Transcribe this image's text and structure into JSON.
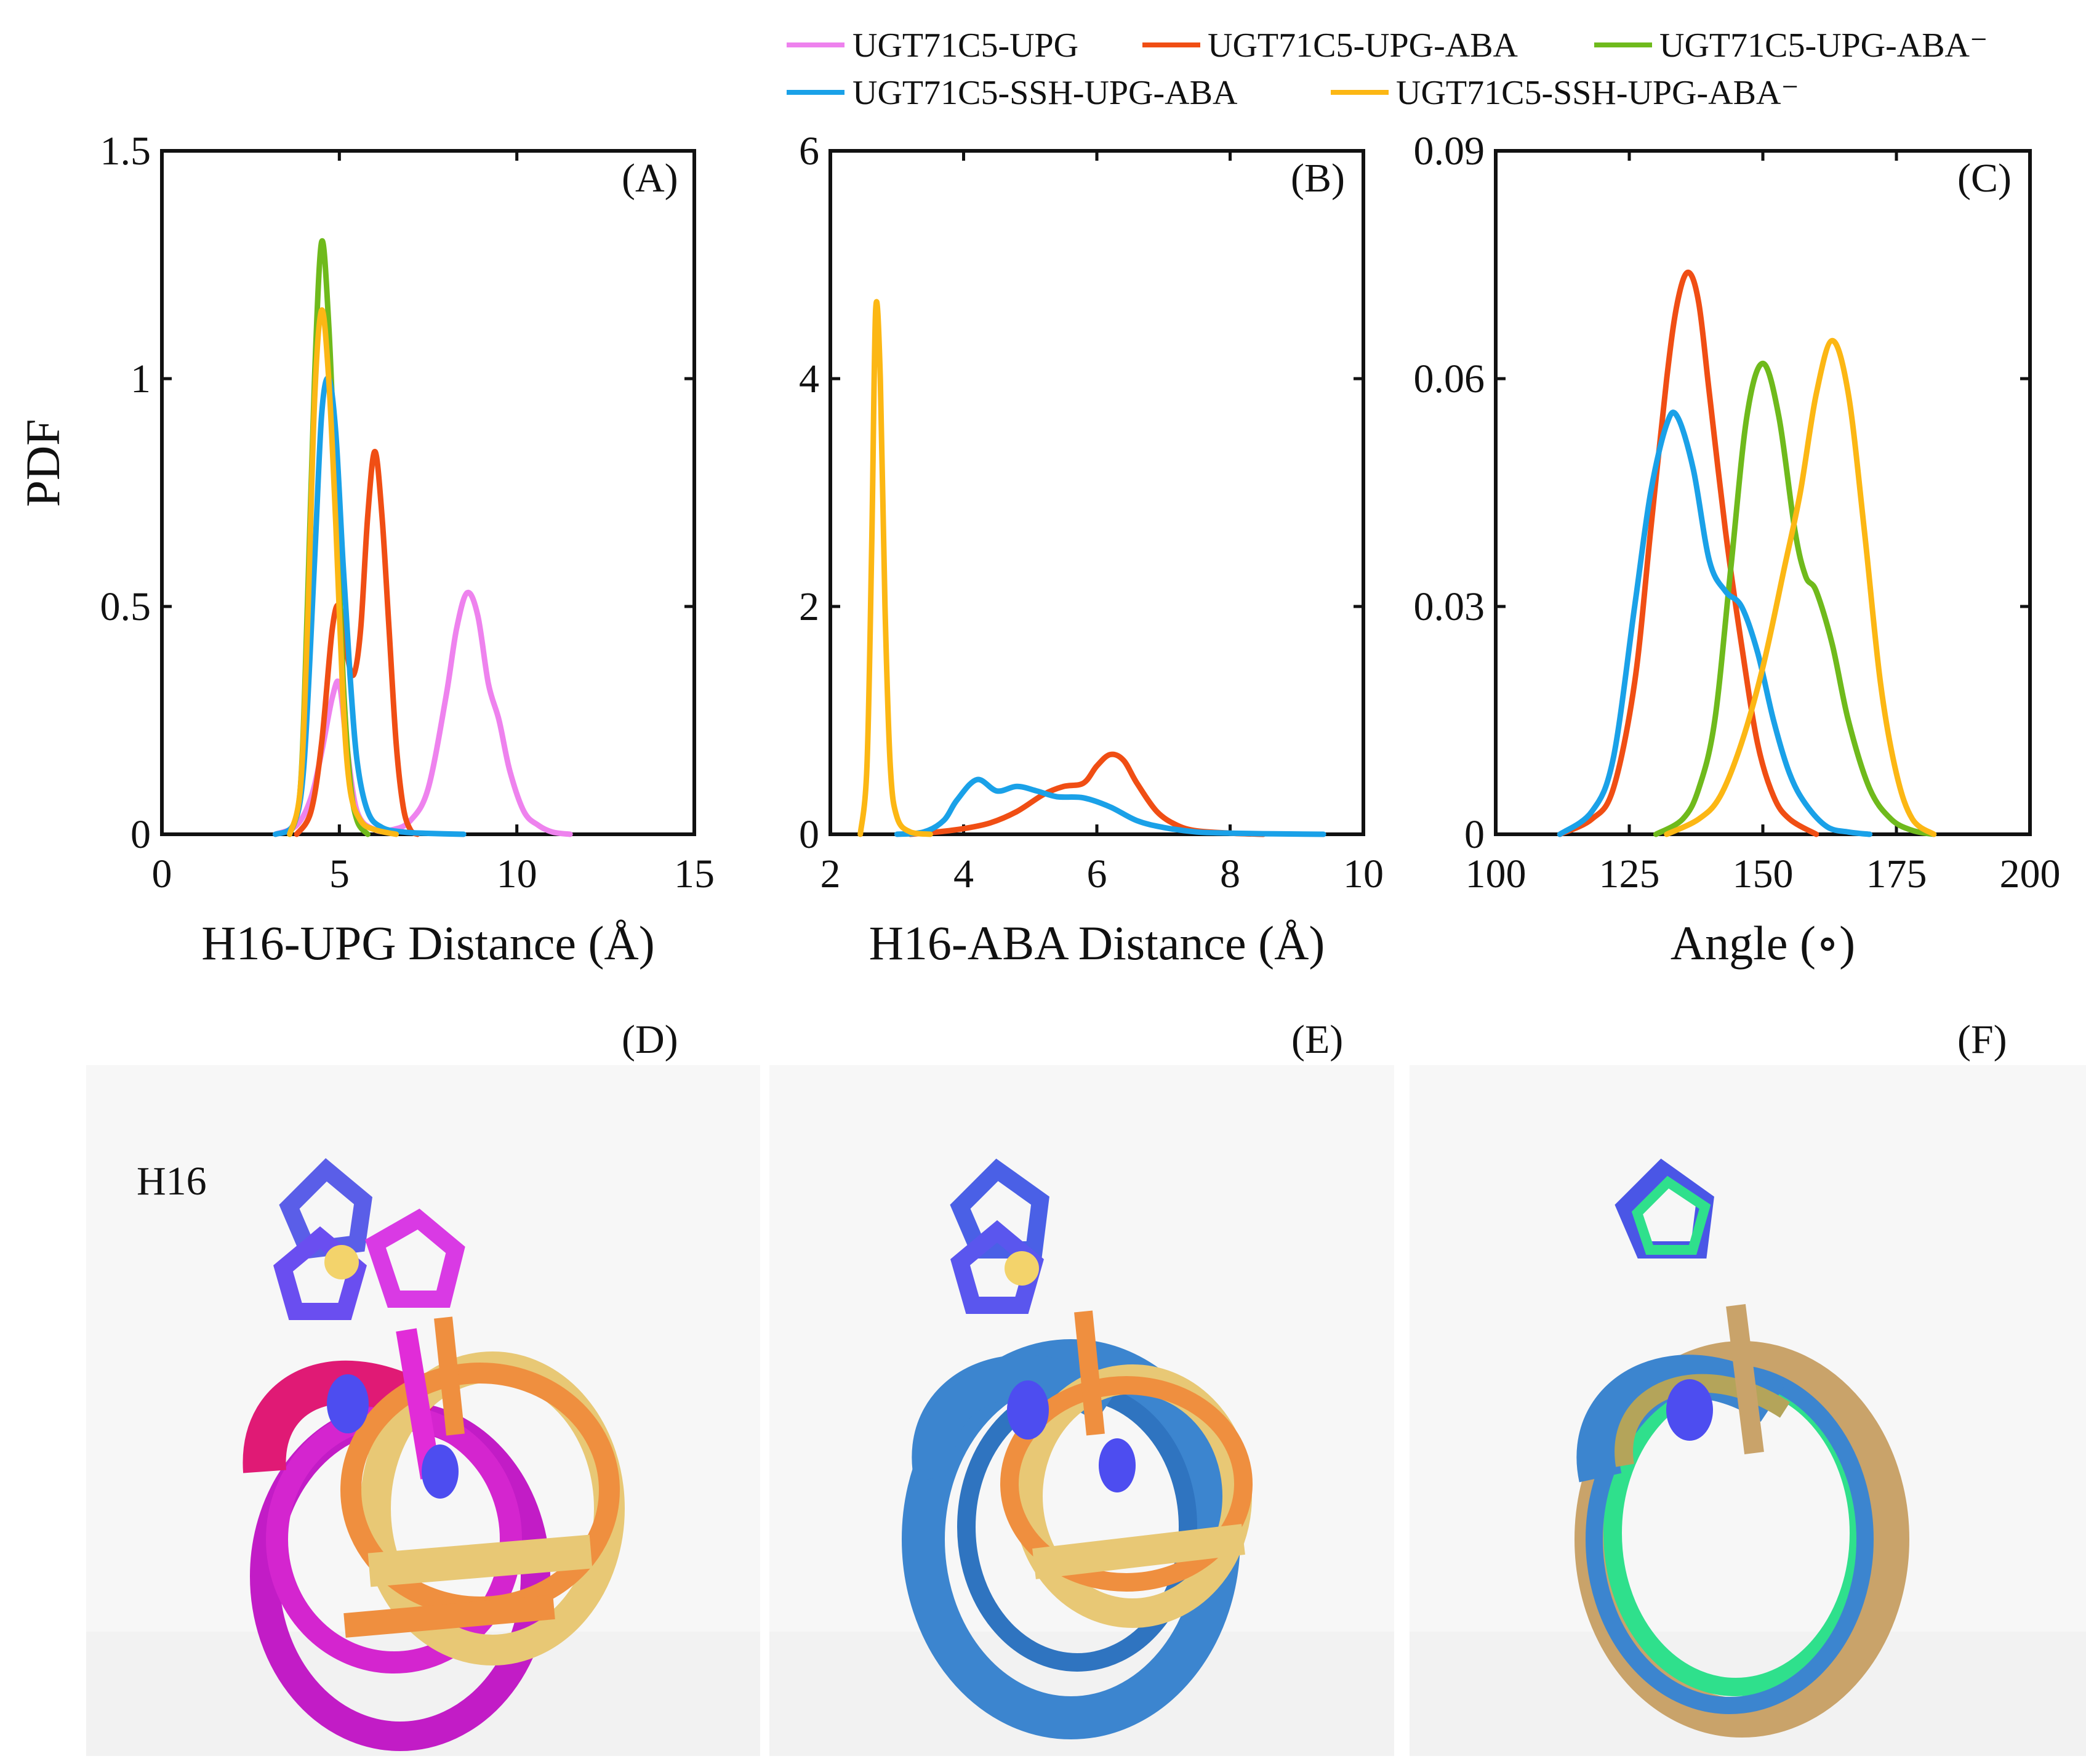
{
  "legend": [
    {
      "name": "UGT71C5-UPG",
      "color": "#ee82ee"
    },
    {
      "name": "UGT71C5-UPG-ABA",
      "color": "#f04e14"
    },
    {
      "name": "UGT71C5-UPG-ABA⁻",
      "color": "#6fba1c"
    },
    {
      "name": "UGT71C5-SSH-UPG-ABA",
      "color": "#1aa1e8"
    },
    {
      "name": "UGT71C5-SSH-UPG-ABA⁻",
      "color": "#fcb714"
    }
  ],
  "ylabel": "PDF",
  "structure_label": "H16",
  "panel_labels": [
    "(A)",
    "(B)",
    "(C)",
    "(D)",
    "(E)",
    "(F)"
  ],
  "chart_data": [
    {
      "type": "line",
      "panel": "(A)",
      "xlabel": "H16-UPG Distance (Å)",
      "ylabel": "PDF",
      "xlim": [
        0,
        15
      ],
      "ylim": [
        0,
        1.5
      ],
      "xticks": [
        0,
        5,
        10,
        15
      ],
      "xtick_labels": [
        "0",
        "5",
        "10",
        "15"
      ],
      "yticks": [
        0,
        0.5,
        1,
        1.5
      ],
      "ytick_labels": [
        "0",
        "0.5",
        "1",
        "1.5"
      ],
      "series": [
        {
          "name": "UGT71C5-UPG",
          "color": "#ee82ee",
          "x": [
            3.2,
            3.8,
            4.2,
            4.5,
            4.8,
            5.0,
            5.2,
            5.5,
            6.0,
            6.5,
            7.0,
            7.5,
            8.0,
            8.3,
            8.6,
            8.9,
            9.2,
            9.5,
            9.8,
            10.2,
            10.6,
            11.0,
            11.5
          ],
          "y": [
            0,
            0.02,
            0.08,
            0.18,
            0.3,
            0.33,
            0.2,
            0.05,
            0.01,
            0.01,
            0.03,
            0.1,
            0.3,
            0.45,
            0.53,
            0.48,
            0.33,
            0.25,
            0.14,
            0.05,
            0.02,
            0.005,
            0
          ]
        },
        {
          "name": "UGT71C5-UPG-ABA",
          "color": "#f04e14",
          "x": [
            3.8,
            4.2,
            4.5,
            4.8,
            5.0,
            5.2,
            5.4,
            5.6,
            5.8,
            6.0,
            6.2,
            6.4,
            6.6,
            6.8,
            7.0,
            7.2
          ],
          "y": [
            0,
            0.05,
            0.2,
            0.45,
            0.5,
            0.4,
            0.35,
            0.45,
            0.7,
            0.84,
            0.7,
            0.45,
            0.2,
            0.06,
            0.01,
            0
          ]
        },
        {
          "name": "UGT71C5-UPG-ABA⁻",
          "color": "#6fba1c",
          "x": [
            3.6,
            3.9,
            4.1,
            4.3,
            4.5,
            4.7,
            4.9,
            5.1,
            5.3,
            5.5,
            5.8
          ],
          "y": [
            0,
            0.1,
            0.5,
            1.0,
            1.3,
            1.12,
            0.75,
            0.35,
            0.12,
            0.03,
            0
          ]
        },
        {
          "name": "UGT71C5-SSH-UPG-ABA",
          "color": "#1aa1e8",
          "x": [
            3.2,
            3.7,
            4.0,
            4.3,
            4.5,
            4.7,
            4.9,
            5.1,
            5.3,
            5.5,
            5.8,
            6.2,
            6.8,
            7.5,
            8.5
          ],
          "y": [
            0,
            0.02,
            0.15,
            0.6,
            0.92,
            1.0,
            0.88,
            0.6,
            0.35,
            0.16,
            0.05,
            0.015,
            0.005,
            0.002,
            0
          ]
        },
        {
          "name": "UGT71C5-SSH-UPG-ABA⁻",
          "color": "#fcb714",
          "x": [
            3.6,
            3.9,
            4.1,
            4.3,
            4.5,
            4.7,
            4.9,
            5.1,
            5.3,
            5.6,
            6.0,
            6.6
          ],
          "y": [
            0,
            0.1,
            0.45,
            0.95,
            1.15,
            1.0,
            0.68,
            0.3,
            0.1,
            0.03,
            0.01,
            0
          ]
        }
      ]
    },
    {
      "type": "line",
      "panel": "(B)",
      "xlabel": "H16-ABA Distance (Å)",
      "xlim": [
        2,
        10
      ],
      "ylim": [
        0,
        6
      ],
      "xticks": [
        2,
        4,
        6,
        8,
        10
      ],
      "xtick_labels": [
        "2",
        "4",
        "6",
        "8",
        "10"
      ],
      "yticks": [
        0,
        2,
        4,
        6
      ],
      "ytick_labels": [
        "0",
        "2",
        "4",
        "6"
      ],
      "series": [
        {
          "name": "UGT71C5-UPG-ABA",
          "color": "#f04e14",
          "x": [
            3.2,
            3.6,
            4.0,
            4.4,
            4.8,
            5.2,
            5.5,
            5.8,
            6.0,
            6.2,
            6.4,
            6.6,
            6.9,
            7.2,
            7.5,
            8.0,
            8.5
          ],
          "y": [
            0,
            0.02,
            0.05,
            0.1,
            0.2,
            0.35,
            0.42,
            0.45,
            0.6,
            0.7,
            0.65,
            0.45,
            0.2,
            0.08,
            0.03,
            0.01,
            0
          ]
        },
        {
          "name": "UGT71C5-SSH-UPG-ABA",
          "color": "#1aa1e8",
          "x": [
            3.0,
            3.4,
            3.7,
            3.9,
            4.2,
            4.5,
            4.8,
            5.1,
            5.4,
            5.8,
            6.2,
            6.6,
            7.0,
            7.5,
            8.0,
            8.5,
            9.0,
            9.4
          ],
          "y": [
            0,
            0.02,
            0.12,
            0.3,
            0.48,
            0.38,
            0.42,
            0.38,
            0.33,
            0.32,
            0.24,
            0.12,
            0.06,
            0.02,
            0.01,
            0.005,
            0.002,
            0
          ]
        },
        {
          "name": "UGT71C5-SSH-UPG-ABA⁻",
          "color": "#fcb714",
          "x": [
            2.45,
            2.55,
            2.62,
            2.68,
            2.75,
            2.82,
            2.9,
            3.0,
            3.2,
            3.5
          ],
          "y": [
            0,
            0.6,
            2.5,
            4.6,
            4.0,
            2.0,
            0.6,
            0.15,
            0.02,
            0
          ]
        }
      ]
    },
    {
      "type": "line",
      "panel": "(C)",
      "xlabel": "Angle (∘)",
      "xlim": [
        100,
        200
      ],
      "ylim": [
        0,
        0.09
      ],
      "xticks": [
        100,
        125,
        150,
        175,
        200
      ],
      "xtick_labels": [
        "100",
        "125",
        "150",
        "175",
        "200"
      ],
      "yticks": [
        0,
        0.03,
        0.06,
        0.09
      ],
      "ytick_labels": [
        "0",
        "0.03",
        "0.06",
        "0.09"
      ],
      "series": [
        {
          "name": "UGT71C5-UPG-ABA",
          "color": "#f04e14",
          "x": [
            112,
            118,
            122,
            126,
            129,
            132,
            134,
            136,
            138,
            140,
            143,
            146,
            149,
            152,
            155,
            160
          ],
          "y": [
            0,
            0.002,
            0.006,
            0.02,
            0.04,
            0.06,
            0.07,
            0.074,
            0.07,
            0.058,
            0.04,
            0.025,
            0.012,
            0.005,
            0.002,
            0
          ]
        },
        {
          "name": "UGT71C5-UPG-ABA⁻",
          "color": "#6fba1c",
          "x": [
            130,
            135,
            138,
            141,
            144,
            147,
            150,
            153,
            156,
            158,
            160,
            163,
            166,
            170,
            174,
            178,
            182
          ],
          "y": [
            0,
            0.002,
            0.006,
            0.015,
            0.035,
            0.055,
            0.062,
            0.055,
            0.04,
            0.034,
            0.032,
            0.025,
            0.015,
            0.006,
            0.002,
            0.0005,
            0
          ]
        },
        {
          "name": "UGT71C5-SSH-UPG-ABA",
          "color": "#1aa1e8",
          "x": [
            112,
            118,
            122,
            126,
            129,
            132,
            134,
            137,
            140,
            143,
            146,
            149,
            152,
            155,
            158,
            162,
            166,
            170
          ],
          "y": [
            0,
            0.003,
            0.01,
            0.03,
            0.045,
            0.054,
            0.055,
            0.048,
            0.036,
            0.032,
            0.03,
            0.024,
            0.015,
            0.008,
            0.004,
            0.001,
            0.0003,
            0
          ]
        },
        {
          "name": "UGT71C5-SSH-UPG-ABA⁻",
          "color": "#fcb714",
          "x": [
            132,
            138,
            142,
            146,
            150,
            154,
            157,
            160,
            163,
            166,
            169,
            172,
            175,
            178,
            182
          ],
          "y": [
            0,
            0.002,
            0.005,
            0.012,
            0.022,
            0.035,
            0.045,
            0.058,
            0.065,
            0.058,
            0.04,
            0.02,
            0.008,
            0.002,
            0
          ]
        }
      ]
    }
  ]
}
